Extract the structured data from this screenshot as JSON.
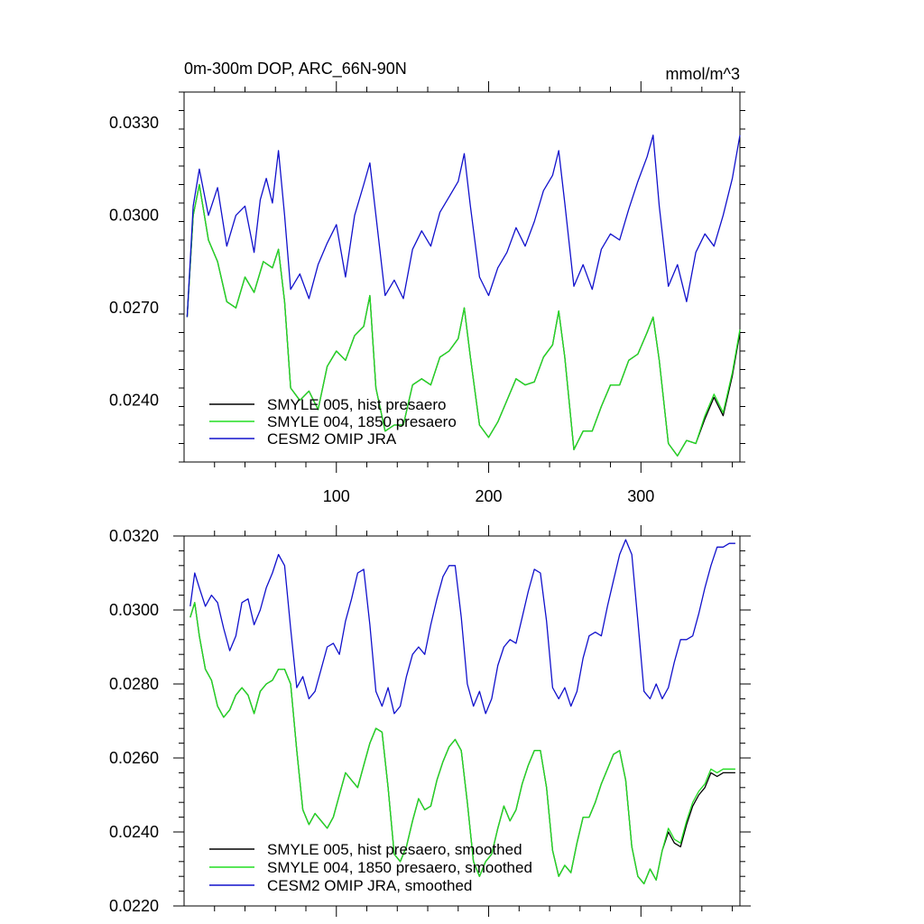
{
  "header": {
    "left_title": "0m-300m DOP, ARC_66N-90N",
    "right_title": "mmol/m^3"
  },
  "colors": {
    "hist": "#000000",
    "presaero1850": "#22dd22",
    "omip": "#1111cc"
  },
  "chart_data": [
    {
      "type": "line",
      "title": "0m-300m DOP, ARC_66N-90N",
      "units": "mmol/m^3",
      "xlim": [
        0,
        365
      ],
      "ylim": [
        0.022,
        0.034
      ],
      "x_ticks": [
        100,
        200,
        300
      ],
      "y_ticks": [
        0.024,
        0.027,
        0.03,
        0.033
      ],
      "y_tick_labels": [
        "0.0240",
        "0.0270",
        "0.0300",
        "0.0330"
      ],
      "x_tick_labels": [
        "100",
        "200",
        "300"
      ],
      "legend_position": "bottom-left",
      "series": [
        {
          "name": "SMYLE 005, hist presaero",
          "color": "#000000",
          "x": [
            2,
            6,
            10,
            16,
            22,
            28,
            34,
            40,
            46,
            52,
            58,
            62,
            66,
            70,
            76,
            82,
            88,
            94,
            100,
            106,
            112,
            118,
            122,
            126,
            132,
            138,
            144,
            150,
            156,
            162,
            168,
            174,
            180,
            184,
            188,
            194,
            200,
            206,
            212,
            218,
            224,
            230,
            236,
            242,
            246,
            250,
            256,
            262,
            268,
            274,
            280,
            286,
            292,
            298,
            304,
            308,
            312,
            318,
            324,
            330,
            336,
            342,
            348,
            354,
            360,
            365
          ],
          "y": [
            0.0267,
            0.03,
            0.031,
            0.0292,
            0.0285,
            0.0272,
            0.027,
            0.028,
            0.0275,
            0.0285,
            0.0283,
            0.0289,
            0.0272,
            0.0244,
            0.024,
            0.0243,
            0.0237,
            0.0251,
            0.0256,
            0.0253,
            0.0261,
            0.0264,
            0.0274,
            0.0244,
            0.023,
            0.0232,
            0.0232,
            0.0245,
            0.0247,
            0.0245,
            0.0254,
            0.0256,
            0.026,
            0.027,
            0.0254,
            0.0232,
            0.0228,
            0.0233,
            0.024,
            0.0247,
            0.0245,
            0.0246,
            0.0254,
            0.0258,
            0.0269,
            0.0254,
            0.0224,
            0.023,
            0.023,
            0.0238,
            0.0245,
            0.0245,
            0.0253,
            0.0255,
            0.0262,
            0.0267,
            0.0253,
            0.0226,
            0.0222,
            0.0227,
            0.0226,
            0.0234,
            0.0241,
            0.0235,
            0.0248,
            0.0262
          ]
        },
        {
          "name": "SMYLE 004, 1850 presaero",
          "color": "#22dd22",
          "x": [
            2,
            6,
            10,
            16,
            22,
            28,
            34,
            40,
            46,
            52,
            58,
            62,
            66,
            70,
            76,
            82,
            88,
            94,
            100,
            106,
            112,
            118,
            122,
            126,
            132,
            138,
            144,
            150,
            156,
            162,
            168,
            174,
            180,
            184,
            188,
            194,
            200,
            206,
            212,
            218,
            224,
            230,
            236,
            242,
            246,
            250,
            256,
            262,
            268,
            274,
            280,
            286,
            292,
            298,
            304,
            308,
            312,
            318,
            324,
            330,
            336,
            342,
            348,
            354,
            360,
            365
          ],
          "y": [
            0.0267,
            0.03,
            0.031,
            0.0292,
            0.0285,
            0.0272,
            0.027,
            0.028,
            0.0275,
            0.0285,
            0.0283,
            0.0289,
            0.0272,
            0.0244,
            0.024,
            0.0243,
            0.0237,
            0.0251,
            0.0256,
            0.0253,
            0.0261,
            0.0264,
            0.0274,
            0.0244,
            0.023,
            0.0232,
            0.0232,
            0.0245,
            0.0247,
            0.0245,
            0.0254,
            0.0256,
            0.026,
            0.027,
            0.0254,
            0.0232,
            0.0228,
            0.0233,
            0.024,
            0.0247,
            0.0245,
            0.0246,
            0.0254,
            0.0258,
            0.0269,
            0.0254,
            0.0224,
            0.023,
            0.023,
            0.0238,
            0.0245,
            0.0245,
            0.0253,
            0.0255,
            0.0262,
            0.0267,
            0.0253,
            0.0226,
            0.0222,
            0.0227,
            0.0226,
            0.0235,
            0.0242,
            0.0236,
            0.0249,
            0.0263
          ]
        },
        {
          "name": "CESM2 OMIP JRA",
          "color": "#1111cc",
          "x": [
            2,
            6,
            10,
            16,
            22,
            28,
            34,
            40,
            46,
            50,
            54,
            58,
            62,
            66,
            70,
            76,
            82,
            88,
            94,
            100,
            106,
            112,
            118,
            122,
            126,
            132,
            138,
            144,
            150,
            156,
            162,
            168,
            174,
            180,
            184,
            188,
            194,
            200,
            206,
            212,
            218,
            224,
            230,
            236,
            242,
            246,
            250,
            256,
            262,
            268,
            274,
            280,
            286,
            292,
            298,
            304,
            308,
            312,
            318,
            324,
            330,
            336,
            342,
            348,
            354,
            360,
            365
          ],
          "y": [
            0.0267,
            0.0303,
            0.0315,
            0.03,
            0.0309,
            0.029,
            0.03,
            0.0303,
            0.0288,
            0.0305,
            0.0312,
            0.0304,
            0.0321,
            0.03,
            0.0276,
            0.0281,
            0.0273,
            0.0284,
            0.0291,
            0.0297,
            0.028,
            0.03,
            0.031,
            0.0317,
            0.03,
            0.0274,
            0.0279,
            0.0273,
            0.0289,
            0.0295,
            0.029,
            0.0301,
            0.0306,
            0.0311,
            0.032,
            0.0303,
            0.028,
            0.0274,
            0.0283,
            0.0288,
            0.0296,
            0.029,
            0.0298,
            0.0308,
            0.0313,
            0.0321,
            0.0304,
            0.0277,
            0.0284,
            0.0276,
            0.0289,
            0.0294,
            0.0292,
            0.0302,
            0.0311,
            0.0319,
            0.0326,
            0.0303,
            0.0277,
            0.0284,
            0.0272,
            0.0288,
            0.0294,
            0.029,
            0.03,
            0.0312,
            0.0326
          ]
        }
      ]
    },
    {
      "type": "line",
      "xlim": [
        0,
        365
      ],
      "ylim": [
        0.022,
        0.032
      ],
      "x_ticks": [
        100,
        200,
        300
      ],
      "y_ticks": [
        0.022,
        0.024,
        0.026,
        0.028,
        0.03,
        0.032
      ],
      "y_tick_labels": [
        "0.0220",
        "0.0240",
        "0.0260",
        "0.0280",
        "0.0300",
        "0.0320"
      ],
      "legend_position": "bottom-left",
      "series": [
        {
          "name": "SMYLE 005, hist presaero, smoothed",
          "color": "#000000",
          "x": [
            4,
            7,
            10,
            14,
            18,
            22,
            26,
            30,
            34,
            38,
            42,
            46,
            50,
            54,
            58,
            62,
            66,
            70,
            74,
            78,
            82,
            86,
            90,
            94,
            98,
            102,
            106,
            110,
            114,
            118,
            122,
            126,
            130,
            134,
            138,
            142,
            146,
            150,
            154,
            158,
            162,
            166,
            170,
            174,
            178,
            182,
            186,
            190,
            194,
            198,
            202,
            206,
            210,
            214,
            218,
            222,
            226,
            230,
            234,
            238,
            242,
            246,
            250,
            254,
            258,
            262,
            266,
            270,
            274,
            278,
            282,
            286,
            290,
            294,
            298,
            302,
            306,
            310,
            314,
            318,
            322,
            326,
            330,
            334,
            338,
            342,
            346,
            350,
            354,
            358,
            362
          ],
          "y": [
            0.0298,
            0.0302,
            0.0293,
            0.0284,
            0.0281,
            0.0274,
            0.0271,
            0.0273,
            0.0277,
            0.0279,
            0.0277,
            0.0272,
            0.0278,
            0.028,
            0.0281,
            0.0284,
            0.0284,
            0.028,
            0.0262,
            0.0246,
            0.0242,
            0.0245,
            0.0243,
            0.0241,
            0.0244,
            0.025,
            0.0256,
            0.0254,
            0.0252,
            0.0258,
            0.0264,
            0.0268,
            0.0267,
            0.0252,
            0.0234,
            0.0232,
            0.0236,
            0.0243,
            0.0249,
            0.0246,
            0.0247,
            0.0254,
            0.0259,
            0.0263,
            0.0265,
            0.0262,
            0.0248,
            0.0232,
            0.0228,
            0.0232,
            0.0234,
            0.0241,
            0.0247,
            0.0243,
            0.0246,
            0.0253,
            0.0258,
            0.0262,
            0.0262,
            0.0252,
            0.0235,
            0.0228,
            0.0231,
            0.0229,
            0.0237,
            0.0244,
            0.0244,
            0.0248,
            0.0253,
            0.0257,
            0.0261,
            0.0262,
            0.0254,
            0.0236,
            0.0228,
            0.0226,
            0.023,
            0.0227,
            0.0235,
            0.024,
            0.0237,
            0.0236,
            0.0242,
            0.0247,
            0.025,
            0.0252,
            0.0256,
            0.0255,
            0.0256,
            0.0256,
            0.0256
          ]
        },
        {
          "name": "SMYLE 004, 1850 presaero, smoothed",
          "color": "#22dd22",
          "x": [
            4,
            7,
            10,
            14,
            18,
            22,
            26,
            30,
            34,
            38,
            42,
            46,
            50,
            54,
            58,
            62,
            66,
            70,
            74,
            78,
            82,
            86,
            90,
            94,
            98,
            102,
            106,
            110,
            114,
            118,
            122,
            126,
            130,
            134,
            138,
            142,
            146,
            150,
            154,
            158,
            162,
            166,
            170,
            174,
            178,
            182,
            186,
            190,
            194,
            198,
            202,
            206,
            210,
            214,
            218,
            222,
            226,
            230,
            234,
            238,
            242,
            246,
            250,
            254,
            258,
            262,
            266,
            270,
            274,
            278,
            282,
            286,
            290,
            294,
            298,
            302,
            306,
            310,
            314,
            318,
            322,
            326,
            330,
            334,
            338,
            342,
            346,
            350,
            354,
            358,
            362
          ],
          "y": [
            0.0298,
            0.0302,
            0.0293,
            0.0284,
            0.0281,
            0.0274,
            0.0271,
            0.0273,
            0.0277,
            0.0279,
            0.0277,
            0.0272,
            0.0278,
            0.028,
            0.0281,
            0.0284,
            0.0284,
            0.028,
            0.0262,
            0.0246,
            0.0242,
            0.0245,
            0.0243,
            0.0241,
            0.0244,
            0.025,
            0.0256,
            0.0254,
            0.0252,
            0.0258,
            0.0264,
            0.0268,
            0.0267,
            0.0252,
            0.0234,
            0.0232,
            0.0236,
            0.0243,
            0.0249,
            0.0246,
            0.0247,
            0.0254,
            0.0259,
            0.0263,
            0.0265,
            0.0262,
            0.0248,
            0.0232,
            0.0228,
            0.0232,
            0.0234,
            0.0241,
            0.0247,
            0.0243,
            0.0246,
            0.0253,
            0.0258,
            0.0262,
            0.0262,
            0.0252,
            0.0235,
            0.0228,
            0.0231,
            0.0229,
            0.0237,
            0.0244,
            0.0244,
            0.0248,
            0.0253,
            0.0257,
            0.0261,
            0.0262,
            0.0254,
            0.0236,
            0.0228,
            0.0226,
            0.023,
            0.0227,
            0.0235,
            0.0241,
            0.0238,
            0.0237,
            0.0243,
            0.0248,
            0.0251,
            0.0253,
            0.0257,
            0.0256,
            0.0257,
            0.0257,
            0.0257
          ]
        },
        {
          "name": "CESM2 OMIP JRA, smoothed",
          "color": "#1111cc",
          "x": [
            4,
            7,
            10,
            14,
            18,
            22,
            26,
            30,
            34,
            38,
            42,
            46,
            50,
            54,
            58,
            62,
            66,
            70,
            74,
            78,
            82,
            86,
            90,
            94,
            98,
            102,
            106,
            110,
            114,
            118,
            122,
            126,
            130,
            134,
            138,
            142,
            146,
            150,
            154,
            158,
            162,
            166,
            170,
            174,
            178,
            182,
            186,
            190,
            194,
            198,
            202,
            206,
            210,
            214,
            218,
            222,
            226,
            230,
            234,
            238,
            242,
            246,
            250,
            254,
            258,
            262,
            266,
            270,
            274,
            278,
            282,
            286,
            290,
            294,
            298,
            302,
            306,
            310,
            314,
            318,
            322,
            326,
            330,
            334,
            338,
            342,
            346,
            350,
            354,
            358,
            362
          ],
          "y": [
            0.0301,
            0.031,
            0.0306,
            0.0301,
            0.0304,
            0.0302,
            0.0295,
            0.0289,
            0.0293,
            0.0302,
            0.0303,
            0.0296,
            0.03,
            0.0306,
            0.031,
            0.0315,
            0.0312,
            0.0295,
            0.0279,
            0.0282,
            0.0276,
            0.0278,
            0.0284,
            0.029,
            0.0291,
            0.0288,
            0.0297,
            0.0303,
            0.031,
            0.0311,
            0.0296,
            0.0278,
            0.0274,
            0.0279,
            0.0272,
            0.0274,
            0.0282,
            0.0288,
            0.029,
            0.0288,
            0.0296,
            0.0303,
            0.0309,
            0.0312,
            0.0312,
            0.0298,
            0.028,
            0.0274,
            0.0278,
            0.0272,
            0.0276,
            0.0285,
            0.029,
            0.0292,
            0.0291,
            0.0298,
            0.0305,
            0.0311,
            0.031,
            0.0297,
            0.0279,
            0.0276,
            0.0279,
            0.0274,
            0.0278,
            0.0287,
            0.0293,
            0.0294,
            0.0293,
            0.0301,
            0.0308,
            0.0315,
            0.0319,
            0.0315,
            0.0297,
            0.0278,
            0.0276,
            0.028,
            0.0276,
            0.0279,
            0.0286,
            0.0292,
            0.0292,
            0.0293,
            0.0299,
            0.0306,
            0.0312,
            0.0317,
            0.0317,
            0.0318,
            0.0318
          ]
        }
      ]
    }
  ]
}
